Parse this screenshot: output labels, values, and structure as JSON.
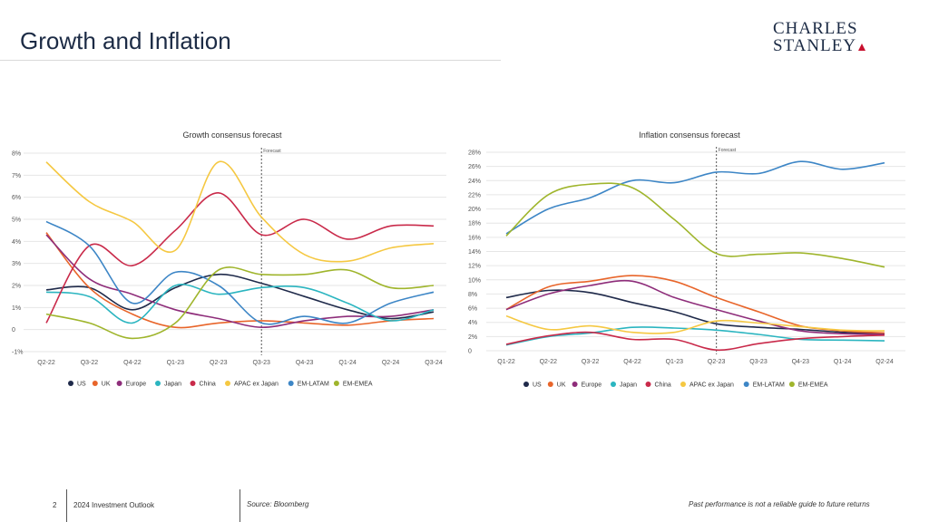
{
  "slide": {
    "title": "Growth and Inflation",
    "page_number": "2",
    "doc_name": "2024 Investment Outlook",
    "source": "Source: Bloomberg",
    "disclaimer": "Past performance is not a reliable guide to future returns"
  },
  "logo": {
    "line1": "CHARLES",
    "line2": "STANLEY"
  },
  "colors": {
    "US": "#1f2a4a",
    "UK": "#e8652a",
    "Europe": "#8e2d7a",
    "Japan": "#2bb5c0",
    "China": "#c92a4a",
    "APAC ex Japan": "#f5c842",
    "EM-LATAM": "#3d86c6",
    "EM-EMEA": "#9fb52c"
  },
  "chart_data": [
    {
      "type": "line",
      "title": "Growth consensus forecast",
      "categories": [
        "Q2-22",
        "Q3-22",
        "Q4-22",
        "Q1-23",
        "Q2-23",
        "Q3-23",
        "Q4-23",
        "Q1-24",
        "Q2-24",
        "Q3-24"
      ],
      "y_ticks": [
        "8%",
        "7%",
        "6%",
        "5%",
        "4%",
        "3%",
        "2%",
        "1%",
        "0",
        "-1%"
      ],
      "ylim": [
        -1,
        8
      ],
      "forecast_label": "Forecast",
      "forecast_after": 5,
      "legend": [
        "US",
        "UK",
        "Europe",
        "Japan",
        "China",
        "APAC ex Japan",
        "EM-LATAM",
        "EM-EMEA"
      ],
      "series": [
        {
          "name": "US",
          "values": [
            1.8,
            1.9,
            0.9,
            1.9,
            2.5,
            2.1,
            1.5,
            0.9,
            0.5,
            0.8
          ]
        },
        {
          "name": "UK",
          "values": [
            4.4,
            1.9,
            0.7,
            0.1,
            0.3,
            0.4,
            0.3,
            0.2,
            0.4,
            0.5
          ]
        },
        {
          "name": "Europe",
          "values": [
            4.3,
            2.3,
            1.6,
            0.9,
            0.5,
            0.1,
            0.4,
            0.6,
            0.6,
            0.9
          ]
        },
        {
          "name": "Japan",
          "values": [
            1.7,
            1.5,
            0.3,
            2.0,
            1.6,
            1.9,
            1.9,
            1.2,
            0.4,
            0.9
          ]
        },
        {
          "name": "China",
          "values": [
            0.3,
            3.8,
            2.9,
            4.5,
            6.2,
            4.3,
            5.0,
            4.1,
            4.7,
            4.7
          ]
        },
        {
          "name": "APAC ex Japan",
          "values": [
            7.6,
            5.8,
            4.9,
            3.6,
            7.6,
            5.1,
            3.4,
            3.1,
            3.7,
            3.9
          ]
        },
        {
          "name": "EM-LATAM",
          "values": [
            4.9,
            3.8,
            1.2,
            2.6,
            2.0,
            0.3,
            0.6,
            0.3,
            1.2,
            1.7
          ]
        },
        {
          "name": "EM-EMEA",
          "values": [
            0.7,
            0.3,
            -0.4,
            0.3,
            2.7,
            2.5,
            2.5,
            2.7,
            1.9,
            2.0
          ]
        }
      ]
    },
    {
      "type": "line",
      "title": "Inflation consensus forecast",
      "categories": [
        "Q1-22",
        "Q2-22",
        "Q3-22",
        "Q4-22",
        "Q1-23",
        "Q2-23",
        "Q3-23",
        "Q4-23",
        "Q1-24",
        "Q2-24"
      ],
      "y_ticks": [
        "28%",
        "26%",
        "24%",
        "22%",
        "20%",
        "18%",
        "16%",
        "14%",
        "12%",
        "10%",
        "8%",
        "6%",
        "4%",
        "2%",
        "0"
      ],
      "ylim": [
        0,
        28
      ],
      "forecast_label": "Forecast",
      "forecast_after": 5,
      "legend": [
        "US",
        "UK",
        "Europe",
        "Japan",
        "China",
        "APAC ex Japan",
        "EM-LATAM",
        "EM-EMEA"
      ],
      "series": [
        {
          "name": "US",
          "values": [
            7.5,
            8.5,
            8.2,
            6.8,
            5.5,
            3.8,
            3.3,
            3.0,
            2.6,
            2.4
          ]
        },
        {
          "name": "UK",
          "values": [
            5.8,
            9.0,
            9.8,
            10.6,
            9.8,
            7.5,
            5.5,
            3.5,
            2.8,
            2.5
          ]
        },
        {
          "name": "Europe",
          "values": [
            5.8,
            8.0,
            9.2,
            9.8,
            7.5,
            5.8,
            4.2,
            2.8,
            2.4,
            2.3
          ]
        },
        {
          "name": "Japan",
          "values": [
            0.8,
            2.0,
            2.5,
            3.3,
            3.2,
            2.9,
            2.3,
            1.6,
            1.5,
            1.4
          ]
        },
        {
          "name": "China",
          "values": [
            0.9,
            2.1,
            2.6,
            1.6,
            1.6,
            0.1,
            1.0,
            1.7,
            2.0,
            2.2
          ]
        },
        {
          "name": "APAC ex Japan",
          "values": [
            4.9,
            3.0,
            3.5,
            2.6,
            2.6,
            4.2,
            3.9,
            3.4,
            2.9,
            2.8
          ]
        },
        {
          "name": "EM-LATAM",
          "values": [
            16.5,
            20.0,
            21.6,
            24.0,
            23.7,
            25.2,
            25.0,
            26.7,
            25.6,
            26.5
          ]
        },
        {
          "name": "EM-EMEA",
          "values": [
            16.2,
            22.0,
            23.5,
            23.0,
            18.5,
            13.7,
            13.6,
            13.8,
            13.0,
            11.8
          ]
        }
      ]
    }
  ]
}
